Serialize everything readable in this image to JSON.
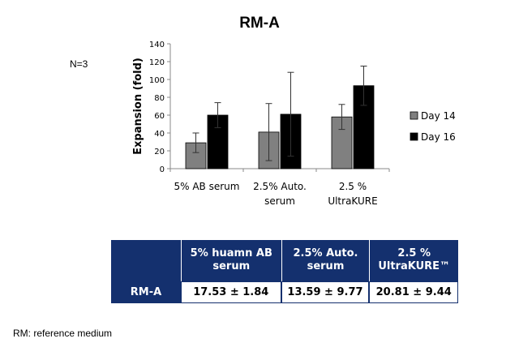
{
  "title": "RM-A",
  "n_note": "N=3",
  "footnote": "RM: reference medium",
  "colors": {
    "day14": "#808080",
    "day16": "#000000",
    "table_header": "#14306e"
  },
  "chart_data": {
    "type": "bar",
    "title": "RM-A",
    "ylabel": "Expansion (fold)",
    "xlabel": "",
    "ylim": [
      0,
      140
    ],
    "yticks": [
      0,
      20,
      40,
      60,
      80,
      100,
      120,
      140
    ],
    "categories": [
      [
        "5% AB serum"
      ],
      [
        "2.5% Auto.",
        "serum"
      ],
      [
        "2.5 %",
        "UltraKURE"
      ]
    ],
    "series": [
      {
        "name": "Day 14",
        "values": [
          29,
          41,
          58
        ],
        "errors": [
          11,
          32,
          14
        ]
      },
      {
        "name": "Day 16",
        "values": [
          60,
          61,
          93
        ],
        "errors": [
          14,
          47,
          22
        ]
      }
    ],
    "legend_position": "right",
    "grid": false
  },
  "table": {
    "columns": [
      "5% huamn AB\nserum",
      "2.5% Auto.\nserum",
      "2.5 %\nUltraKURE™"
    ],
    "row_label": "RM-A",
    "values": [
      "17.53 ± 1.84",
      "13.59 ± 9.77",
      "20.81 ± 9.44"
    ]
  }
}
